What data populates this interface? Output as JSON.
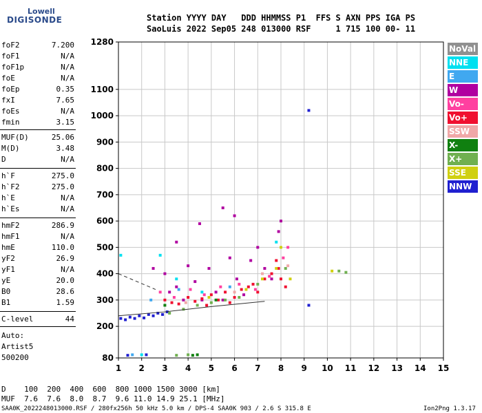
{
  "logo": {
    "line1": "Lowell",
    "line2": "DIGISONDE"
  },
  "header": {
    "row1": "Station YYYY DAY   DDD HHMMSS P1  FFS S AXN PPS IGA PS",
    "row2": "SaoLuis 2022 Sep05 248 013000 RSF     1 715 100 00- 11"
  },
  "params": [
    {
      "name": "foF2",
      "value": "7.200"
    },
    {
      "name": "foF1",
      "value": "N/A"
    },
    {
      "name": "foF1p",
      "value": "N/A"
    },
    {
      "name": "foE",
      "value": "N/A"
    },
    {
      "name": "foEp",
      "value": "0.35"
    },
    {
      "name": "fxI",
      "value": "7.65"
    },
    {
      "name": "foEs",
      "value": "N/A"
    },
    {
      "name": "fmin",
      "value": "3.15"
    },
    {
      "name": "MUF(D)",
      "value": "25.06"
    },
    {
      "name": "M(D)",
      "value": "3.48"
    },
    {
      "name": "D",
      "value": "N/A"
    },
    {
      "name": "h`F",
      "value": "275.0"
    },
    {
      "name": "h`F2",
      "value": "275.0"
    },
    {
      "name": "h`E",
      "value": "N/A"
    },
    {
      "name": "h`Es",
      "value": "N/A"
    },
    {
      "name": "hmF2",
      "value": "286.9"
    },
    {
      "name": "hmF1",
      "value": "N/A"
    },
    {
      "name": "hmE",
      "value": "110.0"
    },
    {
      "name": "yF2",
      "value": "26.9"
    },
    {
      "name": "yF1",
      "value": "N/A"
    },
    {
      "name": "yE",
      "value": "20.0"
    },
    {
      "name": "B0",
      "value": "28.6"
    },
    {
      "name": "B1",
      "value": "1.59"
    },
    {
      "name": "C-level",
      "value": "44"
    }
  ],
  "autoscaling": {
    "line1": "Auto:",
    "line2": "Artist5",
    "line3": "500200"
  },
  "legend": [
    {
      "label": "NoVal",
      "color": "#909090"
    },
    {
      "label": "NNE",
      "color": "#00e0f0"
    },
    {
      "label": "E",
      "color": "#40a8f0"
    },
    {
      "label": "W",
      "color": "#b000a0"
    },
    {
      "label": "Vo-",
      "color": "#ff40a0"
    },
    {
      "label": "Vo+",
      "color": "#f01030"
    },
    {
      "label": "SSW",
      "color": "#f0a8a8"
    },
    {
      "label": "X-",
      "color": "#108010"
    },
    {
      "label": "X+",
      "color": "#70b050"
    },
    {
      "label": "SSE",
      "color": "#d0d010"
    },
    {
      "label": "NNW",
      "color": "#2020d0"
    }
  ],
  "footer": {
    "d_row": "D    100  200  400  600  800 1000 1500 3000 [km]",
    "muf_row": "MUF  7.6  7.6  8.0  8.7  9.6 11.0 14.9 25.1 [MHz]",
    "filename": "SAA0K_2022248013000.RSF / 280fx256h 50 kHz 5.0 km / DPS-4 SAA0K 903 / 2.6 S 315.8 E",
    "version": "Ion2Png 1.3.17"
  },
  "chart_data": {
    "type": "scatter",
    "title": "",
    "xlabel": "",
    "ylabel": "",
    "xlim": [
      1,
      15
    ],
    "ylim": [
      80,
      1280
    ],
    "x_ticks": [
      1,
      2,
      3,
      4,
      5,
      6,
      7,
      8,
      9,
      10,
      11,
      12,
      13,
      14,
      15
    ],
    "y_ticks": [
      80,
      200,
      300,
      400,
      500,
      600,
      700,
      800,
      900,
      1000,
      1100,
      1280
    ],
    "grid": true,
    "series": [
      {
        "name": "W",
        "color": "#b000a0",
        "points": [
          [
            3.0,
            400
          ],
          [
            3.2,
            330
          ],
          [
            3.5,
            350
          ],
          [
            3.8,
            300
          ],
          [
            4.0,
            430
          ],
          [
            4.3,
            370
          ],
          [
            4.6,
            300
          ],
          [
            4.9,
            420
          ],
          [
            5.2,
            330
          ],
          [
            5.5,
            300
          ],
          [
            5.8,
            460
          ],
          [
            6.1,
            380
          ],
          [
            6.4,
            320
          ],
          [
            6.7,
            450
          ],
          [
            7.0,
            500
          ],
          [
            7.3,
            420
          ],
          [
            7.6,
            380
          ],
          [
            7.9,
            560
          ],
          [
            8.0,
            600
          ],
          [
            5.5,
            650
          ],
          [
            6.0,
            620
          ],
          [
            4.5,
            590
          ],
          [
            3.5,
            520
          ],
          [
            2.5,
            420
          ]
        ]
      },
      {
        "name": "Vo+",
        "color": "#f01030",
        "points": [
          [
            3.0,
            300
          ],
          [
            3.3,
            290
          ],
          [
            3.6,
            285
          ],
          [
            4.0,
            310
          ],
          [
            4.3,
            295
          ],
          [
            4.6,
            305
          ],
          [
            5.0,
            320
          ],
          [
            5.3,
            300
          ],
          [
            5.6,
            330
          ],
          [
            6.0,
            310
          ],
          [
            6.3,
            340
          ],
          [
            6.6,
            350
          ],
          [
            7.0,
            330
          ],
          [
            7.3,
            380
          ],
          [
            7.6,
            400
          ],
          [
            7.9,
            420
          ],
          [
            8.0,
            380
          ],
          [
            8.2,
            350
          ],
          [
            7.8,
            450
          ],
          [
            6.8,
            360
          ],
          [
            5.8,
            290
          ],
          [
            4.8,
            280
          ]
        ]
      },
      {
        "name": "Vo-",
        "color": "#ff40a0",
        "points": [
          [
            2.8,
            330
          ],
          [
            3.4,
            310
          ],
          [
            4.1,
            340
          ],
          [
            4.7,
            320
          ],
          [
            5.4,
            350
          ],
          [
            6.2,
            360
          ],
          [
            6.9,
            340
          ],
          [
            7.5,
            390
          ],
          [
            8.1,
            460
          ],
          [
            8.3,
            500
          ]
        ]
      },
      {
        "name": "NNW",
        "color": "#2020d0",
        "points": [
          [
            1.1,
            230
          ],
          [
            1.3,
            225
          ],
          [
            1.5,
            235
          ],
          [
            1.7,
            230
          ],
          [
            1.9,
            240
          ],
          [
            2.1,
            232
          ],
          [
            2.3,
            245
          ],
          [
            2.5,
            240
          ],
          [
            2.7,
            250
          ],
          [
            2.9,
            245
          ],
          [
            3.1,
            255
          ],
          [
            9.2,
            1020
          ],
          [
            9.2,
            280
          ],
          [
            1.4,
            90
          ],
          [
            2.2,
            92
          ]
        ]
      },
      {
        "name": "X+",
        "color": "#70b050",
        "points": [
          [
            3.2,
            250
          ],
          [
            3.8,
            265
          ],
          [
            4.4,
            280
          ],
          [
            5.0,
            290
          ],
          [
            5.6,
            300
          ],
          [
            6.2,
            310
          ],
          [
            7.0,
            360
          ],
          [
            8.2,
            420
          ],
          [
            10.5,
            410
          ],
          [
            10.8,
            405
          ],
          [
            3.5,
            90
          ],
          [
            4.0,
            92
          ]
        ]
      },
      {
        "name": "X-",
        "color": "#108010",
        "points": [
          [
            4.2,
            90
          ],
          [
            4.4,
            92
          ],
          [
            3.0,
            280
          ],
          [
            5.2,
            300
          ]
        ]
      },
      {
        "name": "SSE",
        "color": "#d0d010",
        "points": [
          [
            6.5,
            340
          ],
          [
            7.2,
            380
          ],
          [
            7.8,
            420
          ],
          [
            8.0,
            500
          ],
          [
            8.4,
            380
          ],
          [
            10.2,
            410
          ],
          [
            4.9,
            310
          ]
        ]
      },
      {
        "name": "NNE",
        "color": "#00e0f0",
        "points": [
          [
            1.1,
            470
          ],
          [
            2.8,
            470
          ],
          [
            3.5,
            380
          ],
          [
            4.6,
            330
          ],
          [
            7.8,
            520
          ],
          [
            2.0,
            92
          ]
        ]
      },
      {
        "name": "E",
        "color": "#40a8f0",
        "points": [
          [
            2.4,
            300
          ],
          [
            3.6,
            340
          ],
          [
            5.8,
            350
          ],
          [
            1.6,
            92
          ]
        ]
      },
      {
        "name": "SSW",
        "color": "#f0a8a8",
        "points": [
          [
            3.9,
            290
          ],
          [
            6.0,
            330
          ],
          [
            7.2,
            400
          ],
          [
            8.3,
            430
          ]
        ]
      }
    ]
  }
}
